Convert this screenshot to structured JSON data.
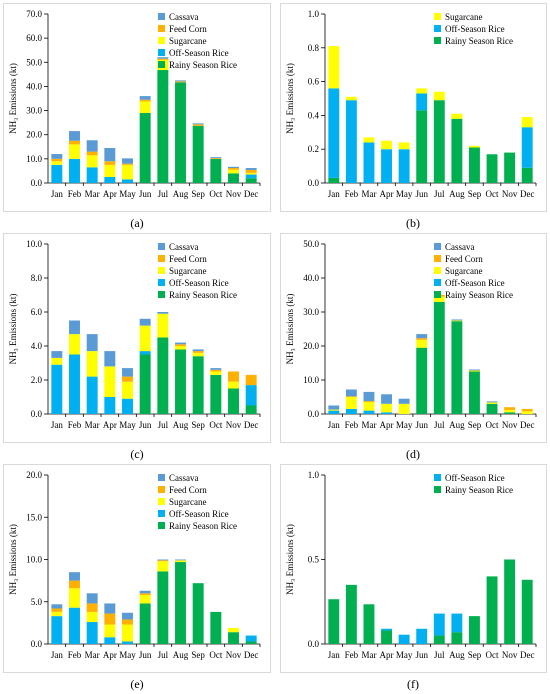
{
  "colors": {
    "Cassava": "#5b9bd5",
    "Feed Corn": "#ffb000",
    "Sugarcane": "#ffff00",
    "Off-Season Rice": "#00b0f0",
    "Rainy Season Rice": "#00b050"
  },
  "chart_data": [
    {
      "type": "bar",
      "stacked": true,
      "caption": "(a)",
      "ylabel": "NH₃ Emissions (kt)",
      "ylim": [
        0,
        70
      ],
      "ystep": 10,
      "ydec": 1,
      "categories": [
        "Jan",
        "Feb",
        "Mar",
        "Apr",
        "May",
        "Jun",
        "Jul",
        "Aug",
        "Sep",
        "Oct",
        "Nov",
        "Dec"
      ],
      "legend": [
        "Cassava",
        "Feed Corn",
        "Sugarcane",
        "Off-Season Rice",
        "Rainy Season Rice"
      ],
      "legend_position": "top-right",
      "series": [
        {
          "name": "Rainy Season Rice",
          "values": [
            0,
            0,
            0,
            0,
            0,
            29,
            46.8,
            41.7,
            23.7,
            10,
            4,
            2
          ]
        },
        {
          "name": "Off-Season Rice",
          "values": [
            7.5,
            10,
            6.5,
            2.5,
            1.5,
            0,
            0,
            0,
            0,
            0,
            0,
            1.5
          ]
        },
        {
          "name": "Sugarcane",
          "values": [
            1.5,
            6,
            5,
            5,
            6,
            4.8,
            4.2,
            0,
            0,
            0,
            1.5,
            0.7
          ]
        },
        {
          "name": "Feed Corn",
          "values": [
            1,
            1.5,
            1.5,
            1.5,
            0.5,
            0.7,
            0.5,
            0.4,
            0.6,
            0.3,
            0.7,
            1.2
          ]
        },
        {
          "name": "Cassava",
          "values": [
            2,
            4,
            4.7,
            5.5,
            2.2,
            1.5,
            0.6,
            0.4,
            0.4,
            0.4,
            0.5,
            0.8
          ]
        }
      ]
    },
    {
      "type": "bar",
      "stacked": true,
      "caption": "(b)",
      "ylabel": "NH₃ Emissions (kt)",
      "ylim": [
        0,
        1
      ],
      "ystep": 0.2,
      "ydec": 1,
      "categories": [
        "Jan",
        "Feb",
        "Mar",
        "Apr",
        "May",
        "Jun",
        "Jul",
        "Aug",
        "Sep",
        "Oct",
        "Nov",
        "Dec"
      ],
      "legend": [
        "Sugarcane",
        "Off-Season Rice",
        "Rainy Season Rice"
      ],
      "legend_position": "top-right",
      "series": [
        {
          "name": "Rainy Season Rice",
          "values": [
            0.03,
            0,
            0,
            0,
            0,
            0.43,
            0.49,
            0.38,
            0.21,
            0.17,
            0.18,
            0.09
          ]
        },
        {
          "name": "Off-Season Rice",
          "values": [
            0.53,
            0.49,
            0.24,
            0.2,
            0.2,
            0.1,
            0,
            0,
            0,
            0,
            0,
            0.24
          ]
        },
        {
          "name": "Sugarcane",
          "values": [
            0.25,
            0.02,
            0.03,
            0.05,
            0.04,
            0.03,
            0.05,
            0.03,
            0.01,
            0,
            0,
            0.06
          ]
        }
      ]
    },
    {
      "type": "bar",
      "stacked": true,
      "caption": "(c)",
      "ylabel": "NH₃ Emissions (kt)",
      "ylim": [
        0,
        10
      ],
      "ystep": 2,
      "ydec": 1,
      "categories": [
        "Jan",
        "Feb",
        "Mar",
        "Apr",
        "May",
        "Jun",
        "Jul",
        "Aug",
        "Sep",
        "Oct",
        "Nov",
        "Dec"
      ],
      "legend": [
        "Cassava",
        "Feed Corn",
        "Sugarcane",
        "Off-Season Rice",
        "Rainy Season Rice"
      ],
      "legend_position": "top-right",
      "series": [
        {
          "name": "Rainy Season Rice",
          "values": [
            0,
            0,
            0,
            0,
            0,
            3.5,
            4.5,
            3.8,
            3.4,
            2.3,
            1.5,
            0.5
          ]
        },
        {
          "name": "Off-Season Rice",
          "values": [
            2.9,
            3.5,
            2.2,
            1,
            0.9,
            0.2,
            0,
            0,
            0,
            0,
            0,
            1.2
          ]
        },
        {
          "name": "Sugarcane",
          "values": [
            0.4,
            1.2,
            1.5,
            1.8,
            1,
            1.5,
            1.4,
            0.2,
            0.2,
            0.2,
            0.4,
            0
          ]
        },
        {
          "name": "Feed Corn",
          "values": [
            0,
            0,
            0,
            0,
            0.3,
            0,
            0,
            0.1,
            0.1,
            0.1,
            0.6,
            0.6
          ]
        },
        {
          "name": "Cassava",
          "values": [
            0.4,
            0.8,
            1,
            0.9,
            0.5,
            0.4,
            0.1,
            0.1,
            0.1,
            0.1,
            0,
            0
          ]
        }
      ]
    },
    {
      "type": "bar",
      "stacked": true,
      "caption": "(d)",
      "ylabel": "NH₃ Emissions (kt)",
      "ylim": [
        0,
        50
      ],
      "ystep": 10,
      "ydec": 1,
      "categories": [
        "Jan",
        "Feb",
        "Mar",
        "Apr",
        "May",
        "Jun",
        "Jul",
        "Aug",
        "Sep",
        "Oct",
        "Nov",
        "Dec"
      ],
      "legend": [
        "Cassava",
        "Feed Corn",
        "Sugarcane",
        "Off-Season Rice",
        "Rainy Season Rice"
      ],
      "legend_position": "top-right",
      "series": [
        {
          "name": "Rainy Season Rice",
          "values": [
            0,
            0,
            0,
            0,
            0,
            19.5,
            33,
            27.3,
            12.5,
            3,
            0.5,
            0
          ]
        },
        {
          "name": "Off-Season Rice",
          "values": [
            1,
            1.5,
            1,
            0.5,
            0,
            0,
            0,
            0,
            0,
            0,
            0,
            0
          ]
        },
        {
          "name": "Sugarcane",
          "values": [
            0.3,
            3.5,
            2.5,
            2.5,
            3,
            2.3,
            1.5,
            0.2,
            0.3,
            0.4,
            0.7,
            0.8
          ]
        },
        {
          "name": "Feed Corn",
          "values": [
            0,
            0.2,
            0.3,
            0,
            0,
            0.5,
            0.5,
            0,
            0,
            0,
            0.8,
            0.7
          ]
        },
        {
          "name": "Cassava",
          "values": [
            1.2,
            2,
            2.7,
            2.8,
            1.5,
            1.2,
            0,
            0.3,
            0.3,
            0.3,
            0,
            0
          ]
        }
      ]
    },
    {
      "type": "bar",
      "stacked": true,
      "caption": "(e)",
      "ylabel": "NH₃ Emissions (kt)",
      "ylim": [
        0,
        20
      ],
      "ystep": 5,
      "ydec": 1,
      "categories": [
        "Jan",
        "Feb",
        "Mar",
        "Apr",
        "May",
        "Jun",
        "Jul",
        "Aug",
        "Sep",
        "Oct",
        "Nov",
        "Dec"
      ],
      "legend": [
        "Cassava",
        "Feed Corn",
        "Sugarcane",
        "Off-Season Rice",
        "Rainy Season Rice"
      ],
      "legend_position": "top-right",
      "series": [
        {
          "name": "Rainy Season Rice",
          "values": [
            0,
            0,
            0,
            0,
            0,
            4.8,
            8.6,
            9.7,
            7.2,
            3.8,
            1.4,
            0.3
          ]
        },
        {
          "name": "Off-Season Rice",
          "values": [
            3.3,
            4.3,
            2.6,
            0.8,
            0.3,
            0,
            0,
            0,
            0,
            0,
            0,
            0.7
          ]
        },
        {
          "name": "Sugarcane",
          "values": [
            0.5,
            2.3,
            1.2,
            1.5,
            2,
            1,
            1.2,
            0.2,
            0,
            0,
            0.5,
            0
          ]
        },
        {
          "name": "Feed Corn",
          "values": [
            0.4,
            0.9,
            1,
            1.3,
            0.6,
            0.2,
            0.1,
            0,
            0,
            0,
            0,
            0
          ]
        },
        {
          "name": "Cassava",
          "values": [
            0.5,
            1,
            1.2,
            1.2,
            0.8,
            0.3,
            0.1,
            0.1,
            0,
            0,
            0,
            0
          ]
        }
      ]
    },
    {
      "type": "bar",
      "stacked": true,
      "caption": "(f)",
      "ylabel": "NH₃ Emissions (kt)",
      "ylim": [
        0,
        1
      ],
      "ystep": 0.5,
      "ydec": 1,
      "categories": [
        "Jan",
        "Feb",
        "Mar",
        "Apr",
        "May",
        "Jun",
        "Jul",
        "Aug",
        "Sep",
        "Oct",
        "Nov",
        "Dec"
      ],
      "legend": [
        "Off-Season Rice",
        "Rainy Season Rice"
      ],
      "legend_position": "top-right",
      "series": [
        {
          "name": "Rainy Season Rice",
          "values": [
            0.265,
            0.35,
            0.235,
            0.08,
            0,
            0,
            0.05,
            0.07,
            0.165,
            0.4,
            0.5,
            0.38
          ]
        },
        {
          "name": "Off-Season Rice",
          "values": [
            0,
            0,
            0,
            0.01,
            0.055,
            0.09,
            0.13,
            0.11,
            0,
            0,
            0,
            0
          ]
        }
      ]
    }
  ]
}
